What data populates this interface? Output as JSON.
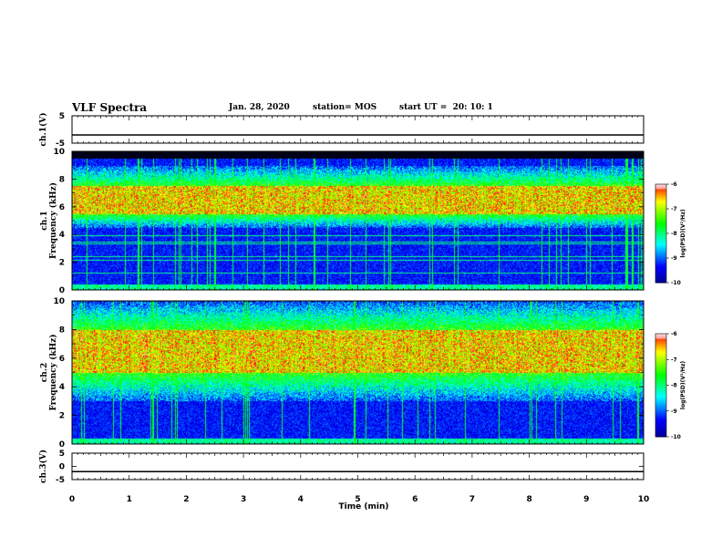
{
  "header": {
    "title": "VLF Spectra",
    "date": "Jan. 28, 2020",
    "station": "station= MOS",
    "start": "start UT =  20: 10: 1"
  },
  "colors": {
    "black": "#000000",
    "blue": "#0000ff",
    "cyan": "#00ffff",
    "green": "#00ff00",
    "yellow": "#ffff00",
    "red": "#ff0000"
  },
  "chart_data": [
    {
      "type": "line",
      "panel": "ch1-waveform",
      "ylabel": "ch.1(V)",
      "ylim": [
        -5,
        5
      ],
      "yticks": [
        "5",
        "-5"
      ],
      "series": [
        {
          "values_constant": -2
        }
      ]
    },
    {
      "type": "heatmap",
      "panel": "ch1-spectrogram",
      "ylabel_line1": "ch.1",
      "ylabel_line2": "Frequency (kHz)",
      "ylim": [
        0,
        10
      ],
      "yticks": [
        "0",
        "2",
        "4",
        "6",
        "8",
        "10"
      ],
      "colorbar": {
        "label": "log(PSD)(V²/Hz)",
        "ticks": [
          "-6",
          "-7",
          "-8",
          "-9",
          "-10"
        ],
        "range": [
          -10,
          -6
        ]
      },
      "band_kHz": [
        4.5,
        9.0
      ],
      "peak_kHz": [
        5.5,
        7.5
      ],
      "saturation_above_kHz": 9.5
    },
    {
      "type": "heatmap",
      "panel": "ch2-spectrogram",
      "ylabel_line1": "ch.2",
      "ylabel_line2": "Frequency (kHz)",
      "ylim": [
        0,
        10
      ],
      "yticks": [
        "0",
        "2",
        "4",
        "6",
        "8",
        "10"
      ],
      "colorbar": {
        "label": "log(PSD)(V²/Hz)",
        "ticks": [
          "-6",
          "-7",
          "-8",
          "-9",
          "-10"
        ],
        "range": [
          -10,
          -6
        ]
      },
      "band_kHz": [
        3.0,
        10.0
      ],
      "peak_kHz": [
        5.0,
        8.0
      ]
    },
    {
      "type": "line",
      "panel": "ch3-waveform",
      "ylabel": "ch.3(V)",
      "ylim": [
        -5,
        5
      ],
      "yticks": [
        "5",
        "0",
        "-5"
      ],
      "series": [
        {
          "values_constant": -2
        }
      ]
    }
  ],
  "xaxis": {
    "label": "Time (min)",
    "ticks": [
      "0",
      "1",
      "2",
      "3",
      "4",
      "5",
      "6",
      "7",
      "8",
      "9",
      "10"
    ],
    "range": [
      0,
      10
    ]
  }
}
